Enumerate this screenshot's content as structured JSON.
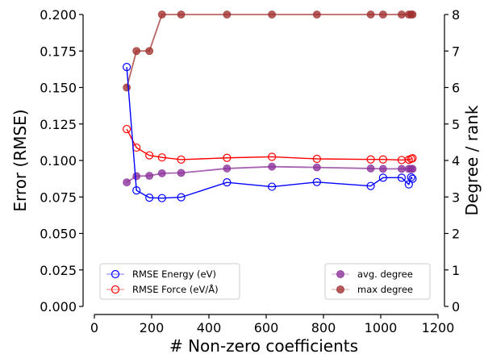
{
  "chart_data": {
    "type": "line",
    "x": [
      113,
      147,
      192,
      236,
      303,
      463,
      620,
      777,
      965,
      1008,
      1073,
      1098,
      1106,
      1111
    ],
    "xlabel": "# Non-zero coefficients",
    "xlim": [
      0,
      1200
    ],
    "x_ticks": [
      "0",
      "200",
      "400",
      "600",
      "800",
      "1000",
      "1200"
    ],
    "y_left": {
      "label": "Error (RMSE)",
      "lim": [
        0,
        0.2
      ],
      "ticks": [
        "0.000",
        "0.025",
        "0.050",
        "0.075",
        "0.100",
        "0.125",
        "0.150",
        "0.175",
        "0.200"
      ]
    },
    "y_right": {
      "label": "Degree / rank",
      "lim": [
        0,
        8
      ],
      "ticks": [
        "0",
        "1",
        "2",
        "3",
        "4",
        "5",
        "6",
        "7",
        "8"
      ]
    },
    "series": [
      {
        "name": "RMSE Energy (eV)",
        "axis": "left",
        "color": "#0000ff",
        "marker": "open-circle",
        "values": [
          0.164,
          0.0795,
          0.0745,
          0.0742,
          0.0748,
          0.085,
          0.082,
          0.0852,
          0.0825,
          0.0882,
          0.0882,
          0.0836,
          0.0885,
          0.0875
        ]
      },
      {
        "name": "RMSE Force (eV/Å)",
        "axis": "left",
        "color": "#ff0000",
        "marker": "open-circle",
        "values": [
          0.1215,
          0.1088,
          0.1035,
          0.1021,
          0.1006,
          0.1018,
          0.1025,
          0.1011,
          0.1007,
          0.1007,
          0.1003,
          0.1005,
          0.1011,
          0.1015
        ]
      },
      {
        "name": "avg. degree",
        "axis": "right",
        "color": "#8b2f9a",
        "marker": "filled-circle",
        "values": [
          3.4,
          3.57,
          3.58,
          3.65,
          3.66,
          3.78,
          3.83,
          3.81,
          3.78,
          3.77,
          3.77,
          3.77,
          3.77,
          3.77
        ]
      },
      {
        "name": "max degree",
        "axis": "right",
        "color": "#a0302e",
        "marker": "filled-circle",
        "values": [
          6,
          7,
          7,
          8,
          8,
          8,
          8,
          8,
          8,
          8,
          8,
          8,
          8,
          8
        ]
      }
    ],
    "legends": [
      {
        "position": "lower-left",
        "entries": [
          "RMSE Energy (eV)",
          "RMSE Force (eV/Å)"
        ]
      },
      {
        "position": "lower-right",
        "entries": [
          "avg. degree",
          "max degree"
        ]
      }
    ],
    "grid": false
  }
}
